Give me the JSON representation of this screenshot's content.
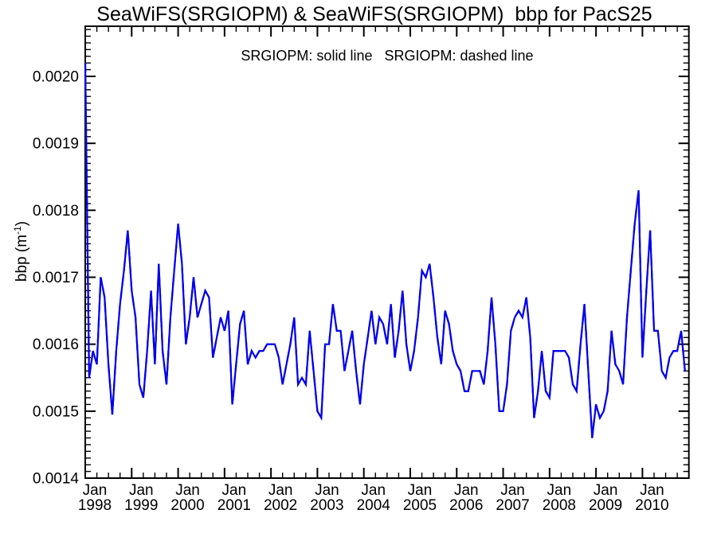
{
  "chart_data": {
    "type": "line",
    "title": "SeaWiFS(SRGIOPM) & SeaWiFS(SRGIOPM)  bbp for PacS25",
    "legend_note": "SRGIOPM: solid line   SRGIOPM: dashed line",
    "ylabel": "bbp (m⁻¹)",
    "ylabel_parts": {
      "prefix": "bbp (m",
      "sup": "-1",
      "suffix": ")"
    },
    "line_color": "#0000ee",
    "axis_color": "#000000",
    "grid": false,
    "x_axis": {
      "month_label": "Jan",
      "years": [
        1998,
        1999,
        2000,
        2001,
        2002,
        2003,
        2004,
        2005,
        2006,
        2007,
        2008,
        2009,
        2010
      ],
      "start": "Jan 1998",
      "end": "Dec 2010",
      "points_per_year": 12,
      "minor_tick_interval_months": 3
    },
    "y_axis": {
      "tick_labels": [
        "0.0014",
        "0.0015",
        "0.0016",
        "0.0017",
        "0.0018",
        "0.0019",
        "0.0020"
      ],
      "tick_values": [
        0.0014,
        0.0015,
        0.0016,
        0.0017,
        0.0018,
        0.0019,
        0.002
      ],
      "minor_tick_interval": 1e-05,
      "range": [
        0.0014,
        0.002075
      ]
    },
    "series": [
      {
        "name": "SRGIOPM",
        "style": "solid",
        "values": [
          0.00202,
          0.00155,
          0.00159,
          0.00157,
          0.0017,
          0.00167,
          0.00157,
          0.001495,
          0.00159,
          0.00166,
          0.00171,
          0.00177,
          0.00168,
          0.00164,
          0.00154,
          0.00152,
          0.00159,
          0.00168,
          0.00157,
          0.00172,
          0.00159,
          0.00154,
          0.00164,
          0.00171,
          0.00178,
          0.00172,
          0.0016,
          0.00164,
          0.0017,
          0.00164,
          0.00166,
          0.00168,
          0.00167,
          0.00158,
          0.00161,
          0.00164,
          0.00162,
          0.00165,
          0.00151,
          0.00157,
          0.00163,
          0.00165,
          0.00157,
          0.00159,
          0.00158,
          0.00159,
          0.00159,
          0.0016,
          0.0016,
          0.0016,
          0.00158,
          0.00154,
          0.00157,
          0.0016,
          0.00164,
          0.00154,
          0.00155,
          0.00154,
          0.00162,
          0.00156,
          0.0015,
          0.00149,
          0.0016,
          0.0016,
          0.00166,
          0.00162,
          0.00162,
          0.00156,
          0.00159,
          0.00162,
          0.00156,
          0.00151,
          0.00157,
          0.00161,
          0.00165,
          0.0016,
          0.00164,
          0.00163,
          0.0016,
          0.00166,
          0.00158,
          0.00162,
          0.00168,
          0.0016,
          0.00156,
          0.00159,
          0.00164,
          0.00171,
          0.0017,
          0.00172,
          0.00167,
          0.00161,
          0.00157,
          0.00165,
          0.00163,
          0.00159,
          0.00157,
          0.00156,
          0.00153,
          0.00153,
          0.00156,
          0.00156,
          0.00156,
          0.00154,
          0.00159,
          0.00167,
          0.0016,
          0.0015,
          0.0015,
          0.00154,
          0.00162,
          0.00164,
          0.00165,
          0.00164,
          0.00167,
          0.00161,
          0.00149,
          0.00153,
          0.00159,
          0.00153,
          0.00152,
          0.00159,
          0.00159,
          0.00159,
          0.00159,
          0.00158,
          0.00154,
          0.00153,
          0.0016,
          0.00166,
          0.00156,
          0.00146,
          0.00151,
          0.00149,
          0.0015,
          0.00153,
          0.00162,
          0.00157,
          0.00156,
          0.00154,
          0.00164,
          0.00171,
          0.00178,
          0.00183,
          0.00158,
          0.00168,
          0.00177,
          0.00162,
          0.00162,
          0.00156,
          0.00155,
          0.00158,
          0.00159,
          0.00159,
          0.00162,
          0.00156
        ]
      },
      {
        "name": "SRGIOPM",
        "style": "dashed",
        "overlaps_solid_exactly": true
      }
    ]
  }
}
